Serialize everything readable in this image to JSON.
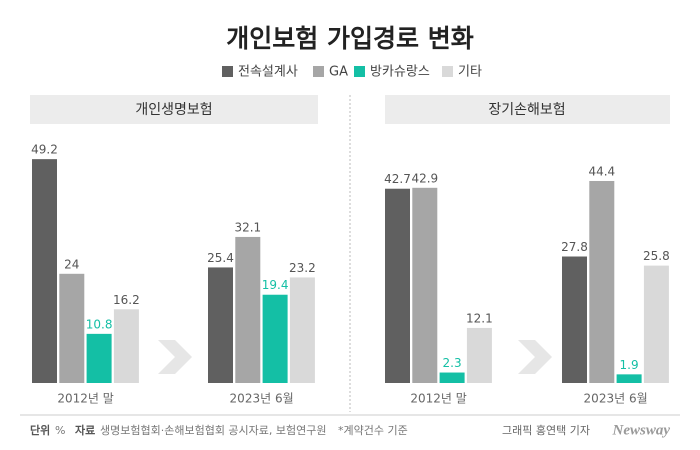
{
  "title": "개인보험 가입경로 변화",
  "chart_data": [
    {
      "type": "bar",
      "title": "개인생명보험",
      "categories": [
        "2012년 말",
        "2023년 6월"
      ],
      "series": [
        {
          "name": "전속설계사",
          "color": "#606060",
          "values": [
            49.2,
            25.4
          ]
        },
        {
          "name": "GA",
          "color": "#a6a6a6",
          "values": [
            24,
            32.1
          ]
        },
        {
          "name": "방카슈랑스",
          "color": "#14bfa5",
          "values": [
            10.8,
            19.4
          ]
        },
        {
          "name": "기타",
          "color": "#d9d9d9",
          "values": [
            16.2,
            23.2
          ]
        }
      ]
    },
    {
      "type": "bar",
      "title": "장기손해보험",
      "categories": [
        "2012년 말",
        "2023년 6월"
      ],
      "series": [
        {
          "name": "전속설계사",
          "color": "#606060",
          "values": [
            42.7,
            27.8
          ]
        },
        {
          "name": "GA",
          "color": "#a6a6a6",
          "values": [
            42.9,
            44.4
          ]
        },
        {
          "name": "방카슈랑스",
          "color": "#14bfa5",
          "values": [
            2.3,
            1.9
          ]
        },
        {
          "name": "기타",
          "color": "#d9d9d9",
          "values": [
            12.1,
            25.8
          ]
        }
      ]
    }
  ],
  "footer": {
    "unit_label": "단위",
    "unit": "%",
    "source_label": "자료",
    "source": "생명보험협회·손해보험협회 공시자료, 보험연구원",
    "note": "*계약건수 기준",
    "credit": "그래픽 홍연택 기자",
    "brand": "Newsway"
  }
}
